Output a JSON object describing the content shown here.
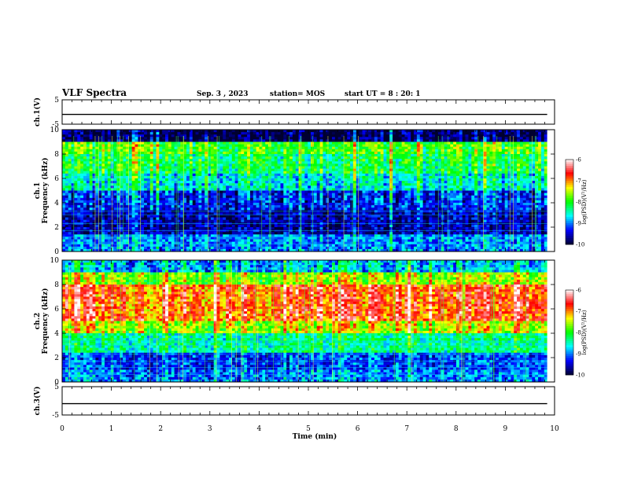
{
  "header": {
    "title": "VLF Spectra",
    "date": "Sep. 3 , 2023",
    "station": "station= MOS",
    "start": "start UT =  8 : 20: 1"
  },
  "colors": {
    "spectrum": [
      "#000030",
      "#0000ff",
      "#00ffff",
      "#00ff00",
      "#ffff00",
      "#ff0000",
      "#ffffff"
    ]
  },
  "chart_data": [
    {
      "type": "line",
      "panel": "ch1-waveform",
      "ylabel": "ch.1(V)",
      "ylim": [
        -5,
        5
      ],
      "yticks": [
        "5",
        "-5"
      ],
      "x": [
        0,
        9.85
      ],
      "series": [
        {
          "values": [
            -1,
            -1
          ]
        }
      ]
    },
    {
      "type": "heatmap",
      "panel": "ch1-spectrogram",
      "ylabel": "ch.1\nFrequency  (kHz)",
      "ylabel_lines": [
        "ch.1",
        "Frequency  (kHz)"
      ],
      "ylim": [
        0,
        10
      ],
      "yticks": [
        "0",
        "2",
        "4",
        "6",
        "8",
        "10"
      ],
      "x_range": [
        0,
        9.85
      ],
      "colorbar": {
        "label": "log(PSD)(V²/Hz)",
        "range": [
          -10,
          -6
        ],
        "ticks": [
          "-6",
          "-7",
          "-8",
          "-9",
          "-10"
        ]
      },
      "bands": [
        {
          "from": 0,
          "to": 1.5,
          "level": -9.0
        },
        {
          "from": 1.5,
          "to": 3.5,
          "level": -9.6
        },
        {
          "from": 3.5,
          "to": 5.0,
          "level": -9.3
        },
        {
          "from": 5.0,
          "to": 6.5,
          "level": -8.6
        },
        {
          "from": 6.5,
          "to": 8.0,
          "level": -8.2
        },
        {
          "from": 8.0,
          "to": 9.0,
          "level": -7.9
        },
        {
          "from": 9.0,
          "to": 10.0,
          "level": -9.9
        }
      ]
    },
    {
      "type": "heatmap",
      "panel": "ch2-spectrogram",
      "ylabel": "ch.2\nFrequency  (kHz)",
      "ylabel_lines": [
        "ch.2",
        "Frequency  (kHz)"
      ],
      "ylim": [
        0,
        10
      ],
      "yticks": [
        "0",
        "2",
        "4",
        "6",
        "8",
        "10"
      ],
      "x_range": [
        0,
        9.85
      ],
      "colorbar": {
        "label": "log(PSD)(V²/Hz)",
        "range": [
          -10,
          -6
        ],
        "ticks": [
          "-6",
          "-7",
          "-8",
          "-9",
          "-10"
        ]
      },
      "bands": [
        {
          "from": 0,
          "to": 1.0,
          "level": -9.0
        },
        {
          "from": 1.0,
          "to": 2.5,
          "level": -9.2
        },
        {
          "from": 2.5,
          "to": 4.0,
          "level": -8.4
        },
        {
          "from": 4.0,
          "to": 5.0,
          "level": -7.5
        },
        {
          "from": 5.0,
          "to": 8.0,
          "level": -6.8
        },
        {
          "from": 8.0,
          "to": 9.0,
          "level": -7.6
        },
        {
          "from": 9.0,
          "to": 10.0,
          "level": -8.8
        }
      ]
    },
    {
      "type": "line",
      "panel": "ch3-waveform",
      "ylabel": "ch.3(V)",
      "ylim": [
        -5,
        5
      ],
      "yticks": [
        "5",
        "-5"
      ],
      "x": [
        0,
        9.85
      ],
      "series": [
        {
          "values": [
            -1,
            -1
          ]
        }
      ]
    }
  ],
  "xaxis": {
    "label": "Time  (min)",
    "range": [
      0,
      10
    ],
    "ticks": [
      "0",
      "1",
      "2",
      "3",
      "4",
      "5",
      "6",
      "7",
      "8",
      "9",
      "10"
    ]
  }
}
